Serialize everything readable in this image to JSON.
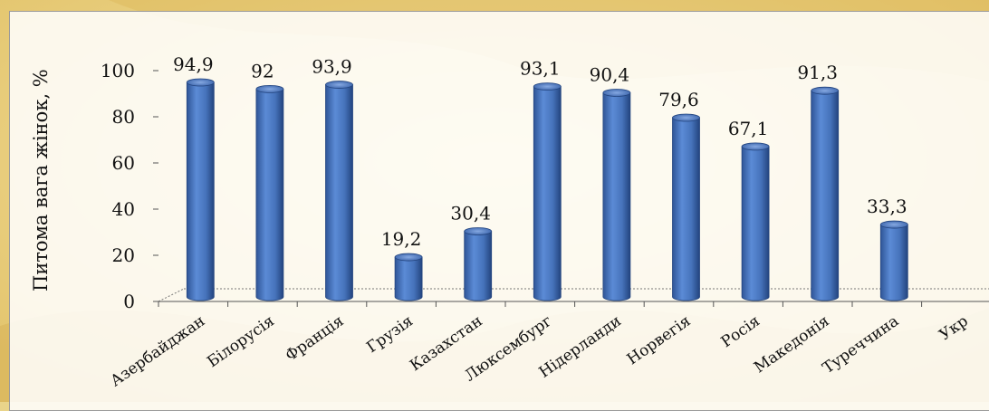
{
  "chart_data": {
    "type": "bar",
    "categories": [
      "Азербайджан",
      "Білорусія",
      "Франція",
      "Грузія",
      "Казахстан",
      "Люксембург",
      "Нідерланди",
      "Норвегія",
      "Росія",
      "Македонія",
      "Туреччина",
      "Укр"
    ],
    "values": [
      94.9,
      92,
      93.9,
      19.2,
      30.4,
      93.1,
      90.4,
      79.6,
      67.1,
      91.3,
      33.3,
      null
    ],
    "data_labels": [
      "94,9",
      "92",
      "93,9",
      "19,2",
      "30,4",
      "93,1",
      "90,4",
      "79,6",
      "67,1",
      "91,3",
      "33,3",
      ""
    ],
    "yticks": [
      "0",
      "20",
      "40",
      "60",
      "80",
      "100"
    ],
    "ylim": [
      0,
      100
    ],
    "ylabel": "Питома вага жінок, %",
    "xlabel": "",
    "title": "",
    "bar_color": "#4f7cc1",
    "grid": false
  }
}
